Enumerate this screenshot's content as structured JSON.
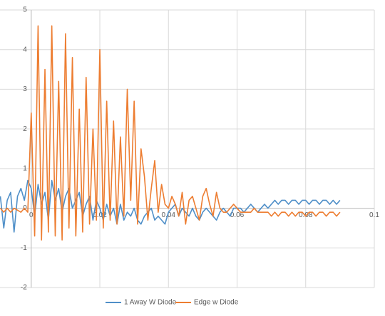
{
  "chart_data": {
    "type": "line",
    "x": [
      -0.009,
      -0.008,
      -0.007,
      -0.006,
      -0.005,
      -0.004,
      -0.003,
      -0.002,
      -0.001,
      0,
      0.001,
      0.002,
      0.003,
      0.004,
      0.005,
      0.006,
      0.007,
      0.008,
      0.009,
      0.01,
      0.011,
      0.012,
      0.013,
      0.014,
      0.015,
      0.016,
      0.017,
      0.018,
      0.019,
      0.02,
      0.021,
      0.022,
      0.023,
      0.024,
      0.025,
      0.026,
      0.027,
      0.028,
      0.029,
      0.03,
      0.031,
      0.032,
      0.033,
      0.034,
      0.035,
      0.036,
      0.037,
      0.038,
      0.039,
      0.04,
      0.041,
      0.042,
      0.043,
      0.044,
      0.045,
      0.046,
      0.047,
      0.048,
      0.049,
      0.05,
      0.051,
      0.052,
      0.053,
      0.054,
      0.055,
      0.056,
      0.057,
      0.058,
      0.059,
      0.06,
      0.061,
      0.062,
      0.063,
      0.064,
      0.065,
      0.066,
      0.067,
      0.068,
      0.069,
      0.07,
      0.071,
      0.072,
      0.073,
      0.074,
      0.075,
      0.076,
      0.077,
      0.078,
      0.079,
      0.08,
      0.081,
      0.082,
      0.083,
      0.084,
      0.085,
      0.086,
      0.087,
      0.088,
      0.089,
      0.09
    ],
    "series": [
      {
        "name": "1 Away W Diode",
        "color": "#4f8fc8",
        "values": [
          0.3,
          -0.5,
          0.2,
          0.4,
          -0.6,
          0.3,
          0.5,
          0.2,
          0.7,
          0.5,
          -0.2,
          0.6,
          0.1,
          0.4,
          -0.3,
          0.7,
          0.2,
          0.5,
          -0.1,
          0.3,
          0.5,
          0.0,
          0.2,
          0.4,
          -0.2,
          0.1,
          0.3,
          -0.3,
          0.2,
          0.0,
          -0.3,
          0.1,
          -0.2,
          0.0,
          -0.4,
          0.1,
          -0.3,
          -0.1,
          -0.2,
          0.0,
          -0.3,
          -0.4,
          -0.2,
          -0.1,
          0.0,
          -0.3,
          -0.2,
          -0.3,
          -0.4,
          -0.1,
          0.0,
          0.1,
          -0.2,
          0.0,
          -0.1,
          -0.2,
          0.0,
          -0.2,
          -0.3,
          -0.1,
          0.0,
          -0.1,
          -0.2,
          -0.3,
          -0.1,
          0.0,
          -0.1,
          -0.2,
          0.0,
          0.0,
          0.0,
          -0.1,
          0.0,
          0.1,
          0.0,
          -0.1,
          0.0,
          0.1,
          0.0,
          0.1,
          0.2,
          0.1,
          0.2,
          0.2,
          0.1,
          0.2,
          0.2,
          0.1,
          0.2,
          0.2,
          0.1,
          0.2,
          0.2,
          0.1,
          0.2,
          0.2,
          0.1,
          0.2,
          0.1,
          0.2
        ]
      },
      {
        "name": "Edge w Diode",
        "color": "#ed7d31",
        "values": [
          0,
          -0.1,
          0,
          -0.1,
          0,
          -0.05,
          -0.1,
          0,
          -0.1,
          2.4,
          -0.7,
          4.6,
          -0.8,
          3.5,
          -0.6,
          4.6,
          -0.7,
          3.2,
          -0.8,
          4.4,
          -0.5,
          3.8,
          -0.7,
          2.5,
          -0.6,
          3.3,
          -0.4,
          2.0,
          -0.3,
          4.0,
          -0.5,
          2.7,
          -0.3,
          2.2,
          -0.4,
          1.8,
          -0.2,
          3.0,
          0.2,
          2.7,
          -0.4,
          1.5,
          0.8,
          -0.3,
          0.5,
          1.2,
          -0.1,
          0.6,
          0.1,
          0.0,
          0.3,
          0.1,
          -0.2,
          0.4,
          -0.4,
          0.2,
          0.3,
          0.0,
          -0.3,
          0.3,
          0.5,
          0.1,
          -0.2,
          0.4,
          0.0,
          -0.1,
          -0.1,
          0.0,
          0.1,
          0.0,
          -0.1,
          -0.1,
          -0.1,
          -0.1,
          0.0,
          -0.1,
          -0.1,
          -0.1,
          -0.1,
          -0.2,
          -0.1,
          -0.2,
          -0.1,
          -0.1,
          -0.2,
          -0.1,
          -0.2,
          -0.1,
          -0.1,
          -0.2,
          -0.1,
          -0.1,
          -0.2,
          -0.1,
          -0.1,
          -0.2,
          -0.1,
          -0.1,
          -0.2,
          -0.1
        ]
      }
    ],
    "xlim": [
      -0.0091,
      0.1
    ],
    "xticks": [
      0,
      0.02,
      0.04,
      0.06,
      0.08,
      0.1
    ],
    "ylim": [
      -2,
      5
    ],
    "yticks": [
      -2,
      -1,
      0,
      1,
      2,
      3,
      4,
      5
    ],
    "grid": true,
    "legend": "bottom"
  }
}
